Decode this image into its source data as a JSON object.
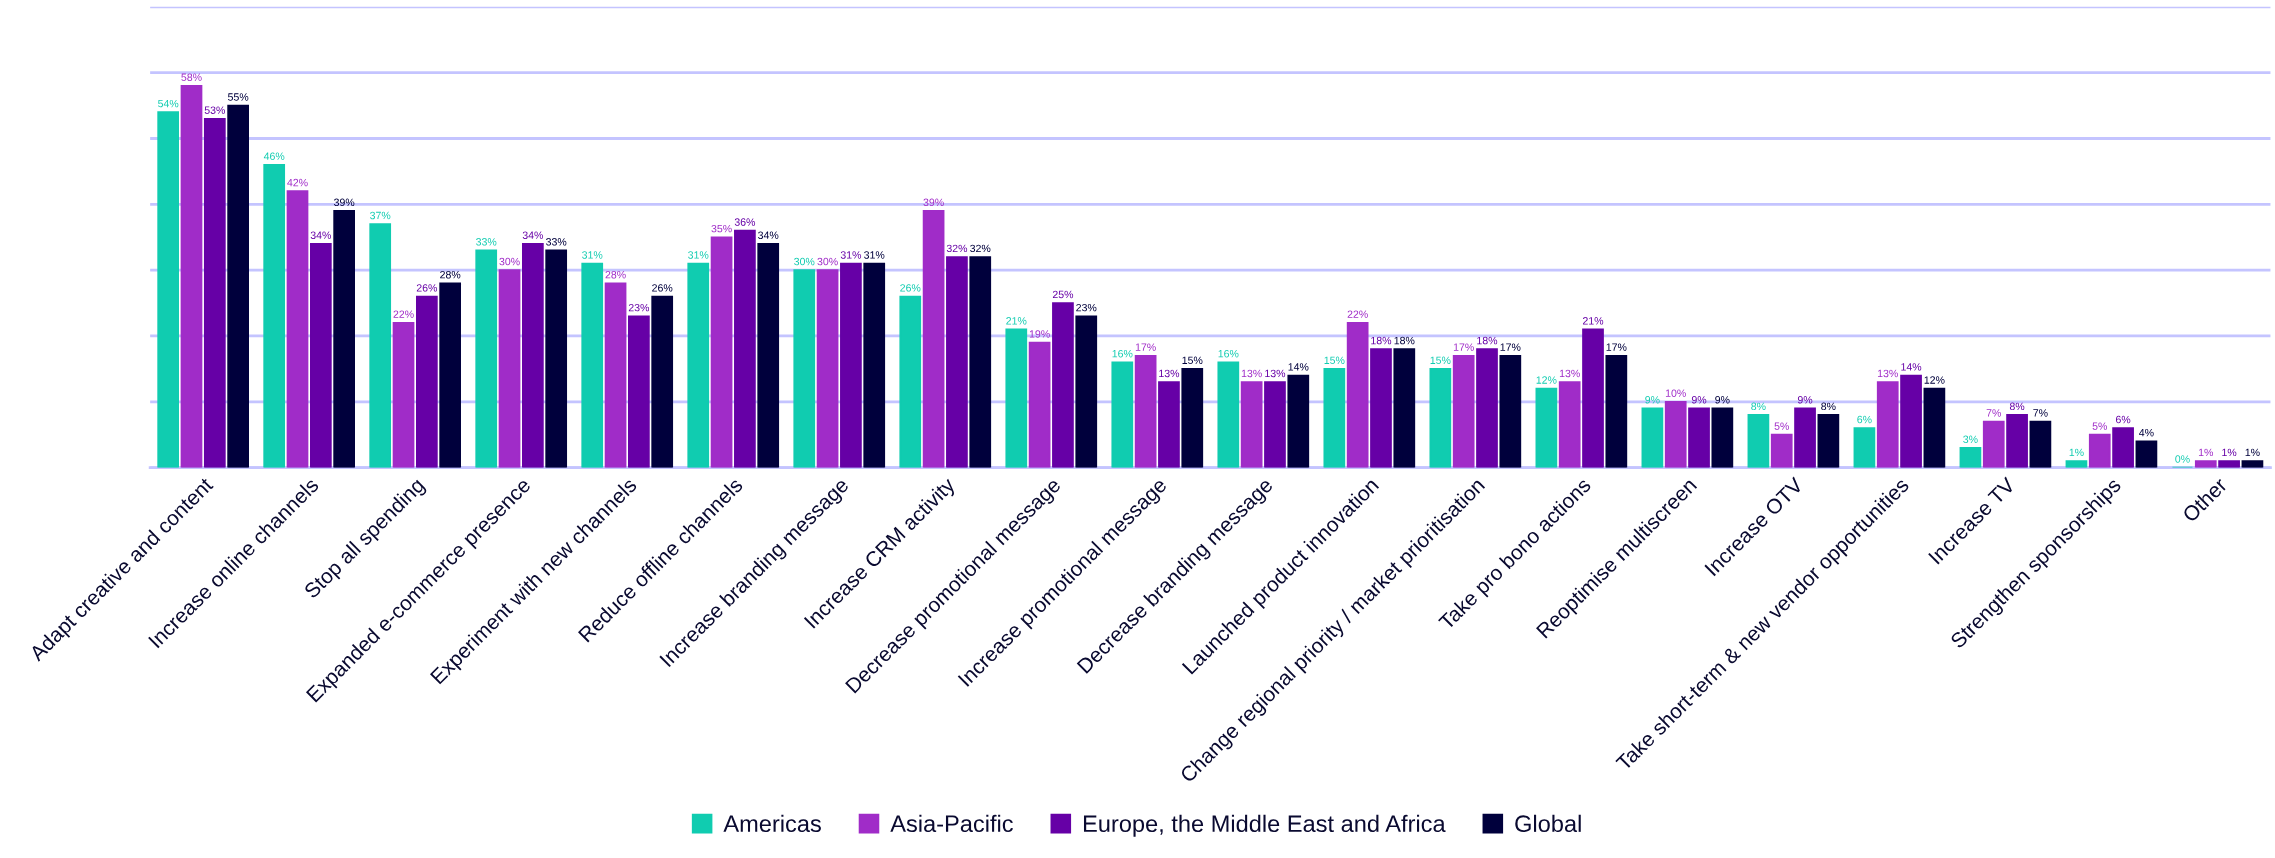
{
  "chart_data": {
    "type": "bar",
    "categories": [
      "Adapt creative and content",
      "Increase online channels",
      "Stop all spending",
      "Expanded e-commerce presence",
      "Experiment with new channels",
      "Reduce offline channels",
      "Increase branding message",
      "Increase CRM activity",
      "Decrease promotional message",
      "Increase promotional message",
      "Decrease branding message",
      "Launched product innovation",
      "Change regional priority / market prioritisation",
      "Take pro bono actions",
      "Reoptimise multiscreen",
      "Increase OTV",
      "Take short-term & new vendor opportunities",
      "Increase TV",
      "Strengthen sponsorships",
      "Other"
    ],
    "series": [
      {
        "name": "Americas",
        "color": "#10ccb0",
        "values": [
          54,
          46,
          37,
          33,
          31,
          31,
          30,
          26,
          21,
          16,
          16,
          15,
          15,
          12,
          9,
          8,
          6,
          3,
          1,
          0
        ],
        "value_labels": [
          "54%",
          "46%",
          "37%",
          "33%",
          "31%",
          "31%",
          "30%",
          "26%",
          "21%",
          "16%",
          "16%",
          "15%",
          "15%",
          "12%",
          "9%",
          "8%",
          "6%",
          "3%",
          "1%",
          "0%"
        ]
      },
      {
        "name": "Asia-Pacific",
        "color": "#a02cc8",
        "values": [
          58,
          42,
          22,
          30,
          28,
          35,
          30,
          39,
          19,
          17,
          13,
          22,
          17,
          13,
          10,
          5,
          13,
          7,
          5,
          1
        ],
        "value_labels": [
          "58%",
          "42%",
          "22%",
          "30%",
          "28%",
          "35%",
          "30%",
          "39%",
          "19%",
          "17%",
          "13%",
          "22%",
          "17%",
          "13%",
          "10%",
          "5%",
          "13%",
          "7%",
          "5%",
          "1%"
        ]
      },
      {
        "name": "Europe, the Middle East and Africa",
        "color": "#6600a6",
        "values": [
          53,
          34,
          26,
          34,
          23,
          36,
          31,
          32,
          25,
          13,
          13,
          18,
          18,
          21,
          9,
          9,
          14,
          8,
          6,
          1
        ],
        "value_labels": [
          "53%",
          "34%",
          "26%",
          "34%",
          "23%",
          "36%",
          "31%",
          "32%",
          "25%",
          "13%",
          "13%",
          "18%",
          "18%",
          "21%",
          "9%",
          "9%",
          "14%",
          "8%",
          "6%",
          "1%"
        ]
      },
      {
        "name": "Global",
        "color": "#00003c",
        "values": [
          55,
          39,
          28,
          33,
          26,
          34,
          31,
          32,
          23,
          15,
          14,
          18,
          17,
          17,
          9,
          8,
          12,
          7,
          4,
          1
        ],
        "value_labels": [
          "55%",
          "39%",
          "28%",
          "33%",
          "26%",
          "34%",
          "31%",
          "32%",
          "23%",
          "15%",
          "14%",
          "18%",
          "17%",
          "17%",
          "9%",
          "8%",
          "12%",
          "7%",
          "4%",
          "1%"
        ]
      }
    ],
    "ylim": [
      0,
      70
    ],
    "yticks": [
      {
        "value": 0,
        "label": null
      },
      {
        "value": 10,
        "label": null
      },
      {
        "value": 20,
        "label": null
      },
      {
        "value": 30,
        "label": null
      },
      {
        "value": 40,
        "label": null
      },
      {
        "value": 50,
        "label": null
      },
      {
        "value": 60,
        "label": null
      },
      {
        "value": 70,
        "label": null
      }
    ],
    "grid": "y",
    "legend": "bottom",
    "tick_labels": "x"
  }
}
